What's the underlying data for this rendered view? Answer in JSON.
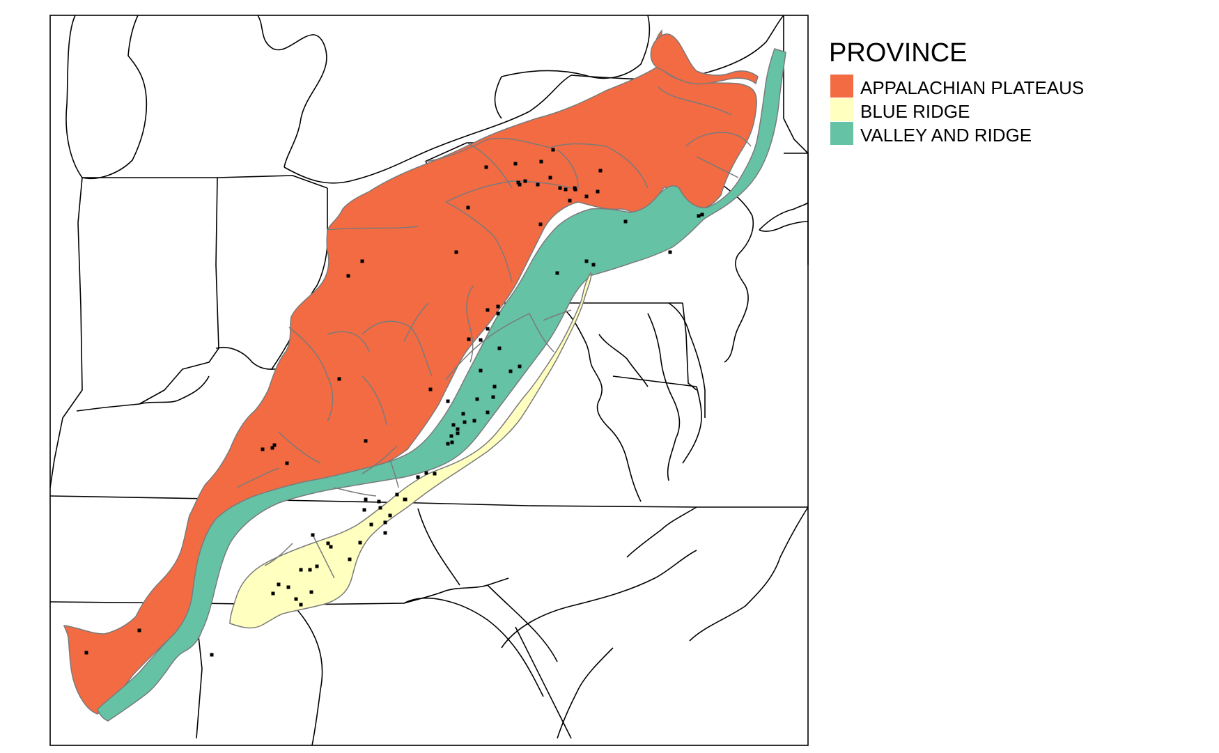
{
  "legend": {
    "title": "PROVINCE",
    "items": [
      {
        "label": "APPALACHIAN PLATEAUS",
        "color": "#f26b43"
      },
      {
        "label": "BLUE RIDGE",
        "color": "#ffffbf"
      },
      {
        "label": "VALLEY AND RIDGE",
        "color": "#66c2a5"
      }
    ]
  },
  "colors": {
    "background": "#ffffff",
    "border": "#000000",
    "state_lines": "#000000",
    "internal_lines": "#7a7a7a",
    "points": "#000000"
  },
  "map_data": {
    "type": "choropleth-map",
    "point_marker": "small black square",
    "region": "Appalachian physiographic provinces, eastern United States"
  }
}
